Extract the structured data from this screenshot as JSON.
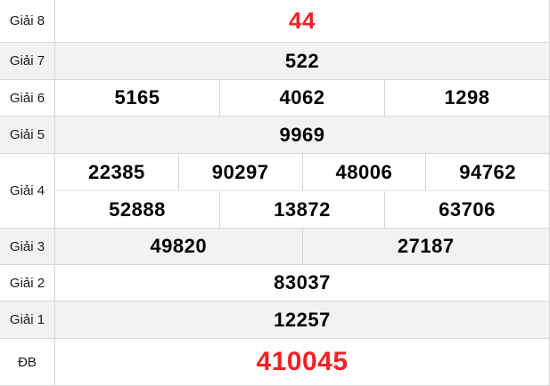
{
  "colors": {
    "highlight_red": "#f32028",
    "alt_row_bg": "#f2f2f2",
    "border": "#d6d6d6",
    "number_black": "#000000"
  },
  "table": {
    "rows": [
      {
        "label": "Giải 8",
        "highlight": true,
        "values": [
          [
            "44"
          ]
        ]
      },
      {
        "label": "Giải 7",
        "highlight": false,
        "values": [
          [
            "522"
          ]
        ]
      },
      {
        "label": "Giải 6",
        "highlight": false,
        "values": [
          [
            "5165",
            "4062",
            "1298"
          ]
        ]
      },
      {
        "label": "Giải 5",
        "highlight": false,
        "values": [
          [
            "9969"
          ]
        ]
      },
      {
        "label": "Giải 4",
        "highlight": false,
        "values": [
          [
            "22385",
            "90297",
            "48006",
            "94762"
          ],
          [
            "52888",
            "13872",
            "63706"
          ]
        ]
      },
      {
        "label": "Giải 3",
        "highlight": false,
        "values": [
          [
            "49820",
            "27187"
          ]
        ]
      },
      {
        "label": "Giải 2",
        "highlight": false,
        "values": [
          [
            "83037"
          ]
        ]
      },
      {
        "label": "Giải 1",
        "highlight": false,
        "values": [
          [
            "12257"
          ]
        ]
      },
      {
        "label": "ĐB",
        "highlight": true,
        "values": [
          [
            "410045"
          ]
        ]
      }
    ]
  }
}
